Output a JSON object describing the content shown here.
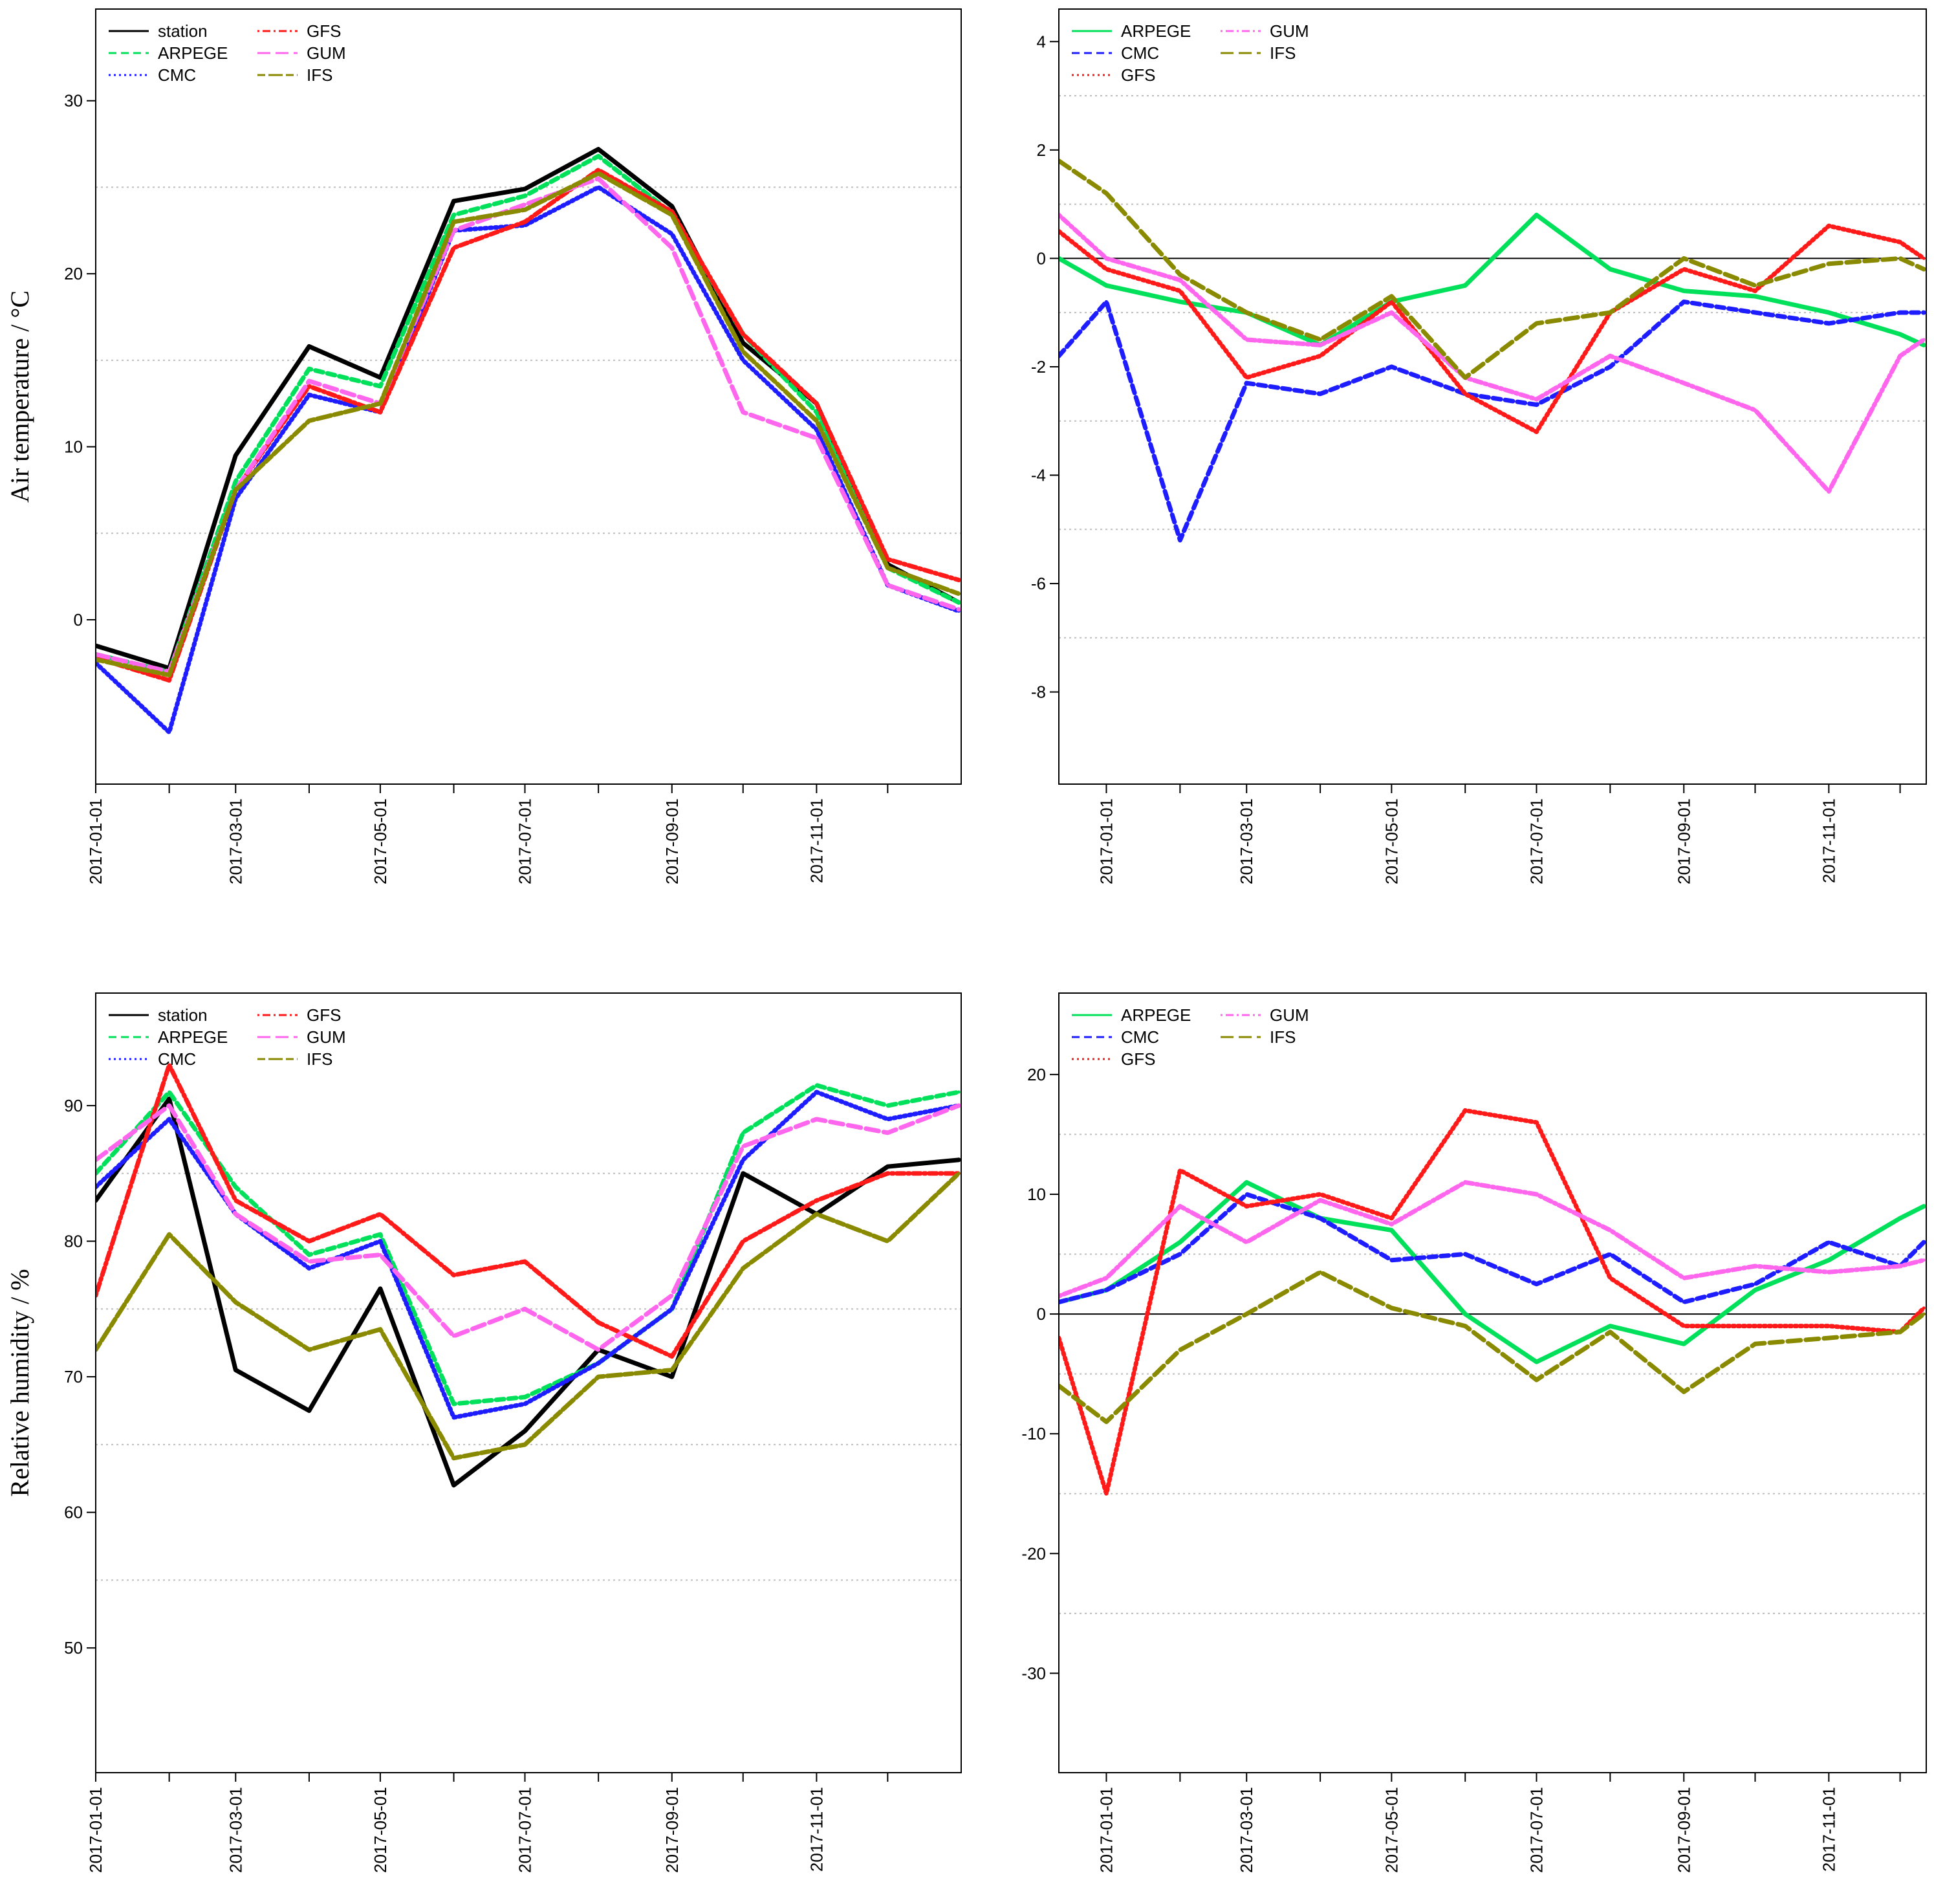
{
  "chart_data": [
    {
      "type": "line",
      "panel": "top-left",
      "title": "",
      "xlabel": "",
      "ylabel": "Air temperature / °C",
      "ylim": [
        -9.5,
        35.3
      ],
      "yticks": [
        0,
        10,
        20,
        30
      ],
      "ytick_labels": [
        "0",
        "10",
        "20",
        "30"
      ],
      "xlim": [
        0,
        365
      ],
      "x_date_labels": [
        "2017-01-01",
        "2017-03-01",
        "2017-05-01",
        "2017-07-01",
        "2017-09-01",
        "2017-11-01"
      ],
      "x_label_days": [
        0,
        59,
        120,
        181,
        243,
        304
      ],
      "x_minor_days": [
        31,
        90,
        151,
        212,
        273,
        334
      ],
      "x_dates": [
        "2017-01-01",
        "2017-02-01",
        "2017-03-01",
        "2017-04-01",
        "2017-05-01",
        "2017-06-01",
        "2017-07-01",
        "2017-08-01",
        "2017-09-01",
        "2017-10-01",
        "2017-11-01",
        "2017-12-01",
        "2017-12-31"
      ],
      "x": [
        0,
        31,
        59,
        90,
        120,
        151,
        181,
        212,
        243,
        273,
        304,
        334,
        364
      ],
      "legend": {
        "position": "top-left",
        "columns": 2,
        "entries": [
          "station",
          "ARPEGE",
          "CMC",
          "GFS",
          "GUM",
          "IFS"
        ]
      },
      "series": [
        {
          "name": "station",
          "color": "#000000",
          "dash": "solid",
          "values": [
            -1.5,
            -2.8,
            9.5,
            15.8,
            14.0,
            24.2,
            24.9,
            27.2,
            23.9,
            16.0,
            12.5,
            3.2,
            1.0
          ]
        },
        {
          "name": "ARPEGE",
          "color": "#00e05a",
          "dash": "dashed",
          "values": [
            -2.0,
            -3.0,
            8.0,
            14.5,
            13.5,
            23.4,
            24.5,
            26.8,
            23.5,
            16.5,
            12.0,
            3.0,
            1.0
          ]
        },
        {
          "name": "CMC",
          "color": "#1d1dff",
          "dash": "dotted",
          "values": [
            -2.5,
            -6.5,
            7.0,
            13.0,
            12.0,
            22.5,
            22.8,
            25.0,
            22.3,
            15.0,
            11.0,
            2.0,
            0.5
          ]
        },
        {
          "name": "GFS",
          "color": "#ff1a1a",
          "dash": "dotdash",
          "values": [
            -2.2,
            -3.5,
            7.5,
            13.5,
            12.0,
            21.5,
            23.0,
            26.0,
            23.6,
            16.5,
            12.5,
            3.5,
            2.3
          ]
        },
        {
          "name": "GUM",
          "color": "#ff66ee",
          "dash": "longdash",
          "values": [
            -2.0,
            -3.0,
            7.5,
            13.8,
            12.5,
            22.5,
            24.0,
            25.5,
            21.5,
            12.0,
            10.5,
            2.0,
            0.6
          ]
        },
        {
          "name": "IFS",
          "color": "#8a8a00",
          "dash": "twodash",
          "values": [
            -2.3,
            -3.2,
            7.5,
            11.5,
            12.5,
            23.0,
            23.7,
            25.8,
            23.4,
            15.5,
            11.5,
            3.0,
            1.5
          ]
        }
      ]
    },
    {
      "type": "line",
      "panel": "top-right",
      "title": "",
      "xlabel": "",
      "ylabel": "",
      "ylim": [
        -9.7,
        4.6
      ],
      "yticks": [
        -8,
        -6,
        -4,
        -2,
        0,
        2,
        4
      ],
      "ytick_labels": [
        "-8",
        "-6",
        "-4",
        "-2",
        "0",
        "2",
        "4"
      ],
      "xlim": [
        -20,
        345
      ],
      "x_date_labels": [
        "2017-01-01",
        "2017-03-01",
        "2017-05-01",
        "2017-07-01",
        "2017-09-01",
        "2017-11-01"
      ],
      "x_label_days": [
        0,
        59,
        120,
        181,
        243,
        304
      ],
      "x_minor_days": [
        31,
        90,
        151,
        212,
        273,
        334
      ],
      "x_dates": [
        "2016-12-11",
        "2017-01-01",
        "2017-02-01",
        "2017-03-01",
        "2017-04-01",
        "2017-05-01",
        "2017-06-01",
        "2017-07-01",
        "2017-08-01",
        "2017-09-01",
        "2017-10-01",
        "2017-11-01",
        "2017-12-01",
        "2017-12-11"
      ],
      "x": [
        -20,
        0,
        31,
        59,
        90,
        120,
        151,
        181,
        212,
        243,
        273,
        304,
        334,
        344
      ],
      "legend": {
        "position": "top-left",
        "columns": 2,
        "entries": [
          "ARPEGE",
          "CMC",
          "GFS",
          "GUM",
          "IFS"
        ]
      },
      "series": [
        {
          "name": "ARPEGE",
          "color": "#00e05a",
          "dash": "solid",
          "values": [
            0.0,
            -0.5,
            -0.8,
            -1.0,
            -1.6,
            -0.8,
            -0.5,
            0.8,
            -0.2,
            -0.6,
            -0.7,
            -1.0,
            -1.4,
            -1.6
          ]
        },
        {
          "name": "CMC",
          "color": "#1d1dff",
          "dash": "dashed",
          "values": [
            -1.8,
            -0.8,
            -5.2,
            -2.3,
            -2.5,
            -2.0,
            -2.5,
            -2.7,
            -2.0,
            -0.8,
            -1.0,
            -1.2,
            -1.0,
            -1.0
          ]
        },
        {
          "name": "GFS",
          "color": "#ff1a1a",
          "dash": "dotted",
          "values": [
            0.5,
            -0.2,
            -0.6,
            -2.2,
            -1.8,
            -0.8,
            -2.5,
            -3.2,
            -1.0,
            -0.2,
            -0.6,
            0.6,
            0.3,
            0.0
          ]
        },
        {
          "name": "GUM",
          "color": "#ff66ee",
          "dash": "dotdash",
          "values": [
            0.8,
            0.0,
            -0.4,
            -1.5,
            -1.6,
            -1.0,
            -2.2,
            -2.6,
            -1.8,
            -2.3,
            -2.8,
            -4.3,
            -1.8,
            -1.5
          ]
        },
        {
          "name": "IFS",
          "color": "#8a8a00",
          "dash": "longdash",
          "values": [
            1.8,
            1.2,
            -0.3,
            -1.0,
            -1.5,
            -0.7,
            -2.2,
            -1.2,
            -1.0,
            0.0,
            -0.5,
            -0.1,
            0.0,
            -0.2
          ]
        }
      ]
    },
    {
      "type": "line",
      "panel": "bottom-left",
      "title": "",
      "xlabel": "",
      "ylabel": "Relative humidity / %",
      "ylim": [
        40.8,
        98.3
      ],
      "yticks": [
        50,
        60,
        70,
        80,
        90
      ],
      "ytick_labels": [
        "50",
        "60",
        "70",
        "80",
        "90"
      ],
      "xlim": [
        0,
        365
      ],
      "x_date_labels": [
        "2017-01-01",
        "2017-03-01",
        "2017-05-01",
        "2017-07-01",
        "2017-09-01",
        "2017-11-01"
      ],
      "x_label_days": [
        0,
        59,
        120,
        181,
        243,
        304
      ],
      "x_minor_days": [
        31,
        90,
        151,
        212,
        273,
        334
      ],
      "x_dates": [
        "2017-01-01",
        "2017-02-01",
        "2017-03-01",
        "2017-04-01",
        "2017-05-01",
        "2017-06-01",
        "2017-07-01",
        "2017-08-01",
        "2017-09-01",
        "2017-10-01",
        "2017-11-01",
        "2017-12-01",
        "2017-12-31"
      ],
      "x": [
        0,
        31,
        59,
        90,
        120,
        151,
        181,
        212,
        243,
        273,
        304,
        334,
        364
      ],
      "legend": {
        "position": "top-left",
        "columns": 2,
        "entries": [
          "station",
          "ARPEGE",
          "CMC",
          "GFS",
          "GUM",
          "IFS"
        ]
      },
      "series": [
        {
          "name": "station",
          "color": "#000000",
          "dash": "solid",
          "values": [
            83.0,
            90.5,
            70.5,
            67.5,
            76.5,
            62.0,
            66.0,
            72.0,
            70.0,
            85.0,
            82.0,
            85.5,
            86.0
          ]
        },
        {
          "name": "ARPEGE",
          "color": "#00e05a",
          "dash": "dashed",
          "values": [
            85.0,
            91.0,
            84.0,
            79.0,
            80.5,
            68.0,
            68.5,
            71.0,
            75.0,
            88.0,
            91.5,
            90.0,
            91.0
          ]
        },
        {
          "name": "CMC",
          "color": "#1d1dff",
          "dash": "dotted",
          "values": [
            84.0,
            89.0,
            82.0,
            78.0,
            80.0,
            67.0,
            68.0,
            71.0,
            75.0,
            86.0,
            91.0,
            89.0,
            90.0
          ]
        },
        {
          "name": "GFS",
          "color": "#ff1a1a",
          "dash": "dotdash",
          "values": [
            76.0,
            93.0,
            83.0,
            80.0,
            82.0,
            77.5,
            78.5,
            74.0,
            71.5,
            80.0,
            83.0,
            85.0,
            85.0
          ]
        },
        {
          "name": "GUM",
          "color": "#ff66ee",
          "dash": "longdash",
          "values": [
            86.0,
            90.0,
            82.0,
            78.5,
            79.0,
            73.0,
            75.0,
            72.0,
            76.0,
            87.0,
            89.0,
            88.0,
            90.0
          ]
        },
        {
          "name": "IFS",
          "color": "#8a8a00",
          "dash": "twodash",
          "values": [
            72.0,
            80.5,
            75.5,
            72.0,
            73.5,
            64.0,
            65.0,
            70.0,
            70.5,
            78.0,
            82.0,
            80.0,
            85.0
          ]
        }
      ]
    },
    {
      "type": "line",
      "panel": "bottom-right",
      "title": "",
      "xlabel": "",
      "ylabel": "",
      "ylim": [
        -38.3,
        26.8
      ],
      "yticks": [
        -30,
        -20,
        -10,
        0,
        10,
        20
      ],
      "ytick_labels": [
        "-30",
        "-20",
        "-10",
        "0",
        "10",
        "20"
      ],
      "xlim": [
        -20,
        345
      ],
      "x_date_labels": [
        "2017-01-01",
        "2017-03-01",
        "2017-05-01",
        "2017-07-01",
        "2017-09-01",
        "2017-11-01"
      ],
      "x_label_days": [
        0,
        59,
        120,
        181,
        243,
        304
      ],
      "x_minor_days": [
        31,
        90,
        151,
        212,
        273,
        334
      ],
      "x_dates": [
        "2016-12-11",
        "2017-01-01",
        "2017-02-01",
        "2017-03-01",
        "2017-04-01",
        "2017-05-01",
        "2017-06-01",
        "2017-07-01",
        "2017-08-01",
        "2017-09-01",
        "2017-10-01",
        "2017-11-01",
        "2017-12-01",
        "2017-12-11"
      ],
      "x": [
        -20,
        0,
        31,
        59,
        90,
        120,
        151,
        181,
        212,
        243,
        273,
        304,
        334,
        344
      ],
      "legend": {
        "position": "top-left",
        "columns": 2,
        "entries": [
          "ARPEGE",
          "CMC",
          "GFS",
          "GUM",
          "IFS"
        ]
      },
      "series": [
        {
          "name": "ARPEGE",
          "color": "#00e05a",
          "dash": "solid",
          "values": [
            1.0,
            2.0,
            6.0,
            11.0,
            8.0,
            7.0,
            0.0,
            -4.0,
            -1.0,
            -2.5,
            2.0,
            4.5,
            8.0,
            9.0
          ]
        },
        {
          "name": "CMC",
          "color": "#1d1dff",
          "dash": "dashed",
          "values": [
            1.0,
            2.0,
            5.0,
            10.0,
            8.0,
            4.5,
            5.0,
            2.5,
            5.0,
            1.0,
            2.5,
            6.0,
            4.0,
            6.0
          ]
        },
        {
          "name": "GFS",
          "color": "#ff1a1a",
          "dash": "dotted",
          "values": [
            -2.0,
            -15.0,
            12.0,
            9.0,
            10.0,
            8.0,
            17.0,
            16.0,
            3.0,
            -1.0,
            -1.0,
            -1.0,
            -1.5,
            0.5
          ]
        },
        {
          "name": "GUM",
          "color": "#ff66ee",
          "dash": "dotdash",
          "values": [
            1.5,
            3.0,
            9.0,
            6.0,
            9.5,
            7.5,
            11.0,
            10.0,
            7.0,
            3.0,
            4.0,
            3.5,
            4.0,
            4.5
          ]
        },
        {
          "name": "IFS",
          "color": "#8a8a00",
          "dash": "longdash",
          "values": [
            -6.0,
            -9.0,
            -3.0,
            0.0,
            3.5,
            0.5,
            -1.0,
            -5.5,
            -1.5,
            -6.5,
            -2.5,
            -2.0,
            -1.5,
            0.0
          ]
        }
      ]
    }
  ]
}
